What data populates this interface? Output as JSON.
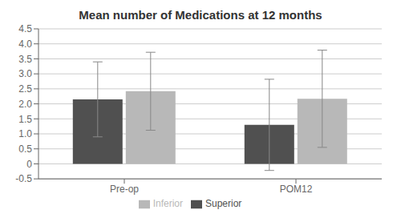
{
  "chart_data": {
    "type": "bar",
    "title": "Mean number of Medications at 12 months",
    "categories": [
      "Pre-op",
      "POM12"
    ],
    "series": [
      {
        "name": "Superior",
        "color": "#505050",
        "values": [
          2.15,
          1.3
        ],
        "errors": [
          1.25,
          1.52
        ]
      },
      {
        "name": "Inferior",
        "color": "#b8b8b8",
        "values": [
          2.42,
          2.17
        ],
        "errors": [
          1.3,
          1.62
        ]
      }
    ],
    "ylim": [
      -0.5,
      4.5
    ],
    "yticks": [
      -0.5,
      0,
      0.5,
      {
        "value": 1,
        "label": "1.0"
      },
      1.5,
      {
        "value": 2,
        "label": "2.0"
      },
      2.5,
      {
        "value": 3,
        "label": "3.0"
      },
      3.5,
      {
        "value": 4,
        "label": "4.0"
      },
      4.5
    ],
    "grid": true,
    "legend": "bottom"
  }
}
